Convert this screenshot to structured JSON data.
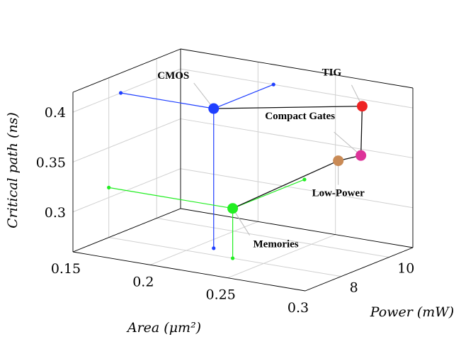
{
  "chart_data": {
    "type": "scatter3d",
    "xlabel": "Area (μm²)",
    "ylabel": "Power (mW)",
    "zlabel": "Critical path (ns)",
    "xlim": [
      0.15,
      0.3
    ],
    "ylim": [
      6.5,
      11
    ],
    "zlim": [
      0.26,
      0.42
    ],
    "xticks": [
      "0.15",
      "0.2",
      "0.25",
      "0.3"
    ],
    "yticks": [
      "8",
      "10"
    ],
    "zticks": [
      "0.3",
      "0.35",
      "0.4"
    ],
    "grid": true,
    "points": [
      {
        "label": "CMOS",
        "x": 0.21,
        "y": 8.5,
        "z": 0.4,
        "color": "#1f3fff",
        "projections": {
          "area": 0.15,
          "power": 11,
          "critical_path": 0.26
        }
      },
      {
        "label": "TIG",
        "x": 0.275,
        "y": 10.5,
        "z": 0.4,
        "color": "#ee2222"
      },
      {
        "label": "Compact Gates",
        "x": 0.285,
        "y": 9.8,
        "z": 0.36,
        "color": "#dd3399"
      },
      {
        "label": "Low-Power",
        "x": 0.275,
        "y": 9.5,
        "z": 0.355,
        "color": "#c98a55"
      },
      {
        "label": "Memories",
        "x": 0.23,
        "y": 8.0,
        "z": 0.31,
        "color": "#22ee22",
        "projections": {
          "area": 0.15,
          "power": 11,
          "critical_path": 0.26
        }
      }
    ],
    "connections": [
      [
        "CMOS",
        "TIG"
      ],
      [
        "TIG",
        "Compact Gates"
      ],
      [
        "Compact Gates",
        "Low-Power"
      ],
      [
        "Low-Power",
        "Memories"
      ]
    ]
  }
}
